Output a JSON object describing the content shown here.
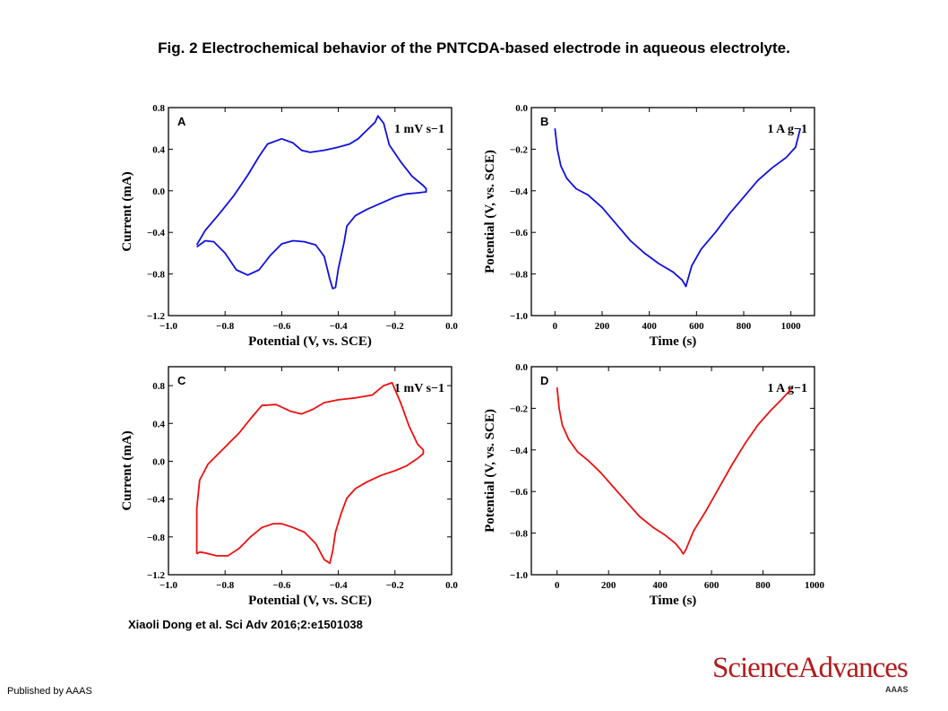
{
  "figure": {
    "title": "Fig. 2 Electrochemical behavior of the PNTCDA-based electrode in aqueous electrolyte.",
    "citation": "Xiaoli Dong et al. Sci Adv 2016;2:e1501038",
    "publisher": "Published by AAAS",
    "logo": "ScienceAdvances",
    "logo_sub": "AAAS"
  },
  "chart_data": [
    {
      "id": "A",
      "type": "line",
      "panel_label": "A",
      "annotation": "1 mV s−1",
      "xlabel": "Potential (V, vs. SCE)",
      "ylabel": "Current (mA)",
      "xlim": [
        -1.0,
        0.0
      ],
      "ylim": [
        -1.2,
        0.8
      ],
      "xticks": [
        "−1.0",
        "−0.8",
        "−0.6",
        "−0.4",
        "−0.2",
        "0.0"
      ],
      "yticks": [
        "−1.2",
        "−0.8",
        "−0.4",
        "0.0",
        "0.4",
        "0.8"
      ],
      "xtick_values": [
        -1.0,
        -0.8,
        -0.6,
        -0.4,
        -0.2,
        0.0
      ],
      "ytick_values": [
        -1.2,
        -0.8,
        -0.4,
        0.0,
        0.4,
        0.8
      ],
      "color": "#1010e0",
      "series": [
        {
          "x": [
            -0.9,
            -0.87,
            -0.82,
            -0.77,
            -0.72,
            -0.68,
            -0.65,
            -0.6,
            -0.56,
            -0.53,
            -0.5,
            -0.45,
            -0.4,
            -0.36,
            -0.33,
            -0.3,
            -0.27,
            -0.26,
            -0.24,
            -0.22,
            -0.18,
            -0.14,
            -0.1,
            -0.09,
            -0.09,
            -0.12,
            -0.16,
            -0.2,
            -0.25,
            -0.3,
            -0.34,
            -0.37,
            -0.38,
            -0.4,
            -0.41,
            -0.42,
            -0.43,
            -0.45,
            -0.48,
            -0.52,
            -0.56,
            -0.6,
            -0.64,
            -0.68,
            -0.72,
            -0.76,
            -0.8,
            -0.84,
            -0.87,
            -0.9
          ],
          "y": [
            -0.52,
            -0.38,
            -0.22,
            -0.05,
            0.15,
            0.33,
            0.45,
            0.5,
            0.46,
            0.39,
            0.37,
            0.39,
            0.42,
            0.45,
            0.5,
            0.58,
            0.66,
            0.72,
            0.65,
            0.44,
            0.28,
            0.14,
            0.05,
            0.02,
            -0.01,
            -0.02,
            -0.03,
            -0.06,
            -0.12,
            -0.18,
            -0.24,
            -0.34,
            -0.5,
            -0.75,
            -0.93,
            -0.94,
            -0.85,
            -0.63,
            -0.52,
            -0.49,
            -0.48,
            -0.51,
            -0.62,
            -0.76,
            -0.81,
            -0.76,
            -0.6,
            -0.49,
            -0.48,
            -0.54
          ]
        }
      ]
    },
    {
      "id": "B",
      "type": "line",
      "panel_label": "B",
      "annotation": "1 A g−1",
      "xlabel": "Time (s)",
      "ylabel": "Potential (V, vs. SCE)",
      "xlim": [
        -100,
        1100
      ],
      "ylim": [
        -1.0,
        0.0
      ],
      "xticks": [
        "0",
        "200",
        "400",
        "600",
        "800",
        "1000"
      ],
      "yticks": [
        "−1.0",
        "−0.8",
        "−0.6",
        "−0.4",
        "−0.2",
        "0.0"
      ],
      "xtick_values": [
        0,
        200,
        400,
        600,
        800,
        1000
      ],
      "ytick_values": [
        -1.0,
        -0.8,
        -0.6,
        -0.4,
        -0.2,
        0.0
      ],
      "color": "#1010e0",
      "series": [
        {
          "x": [
            0,
            10,
            25,
            50,
            90,
            140,
            200,
            260,
            320,
            380,
            440,
            500,
            540,
            555,
            565,
            580,
            620,
            680,
            740,
            800,
            860,
            920,
            980,
            1020,
            1040
          ],
          "y": [
            -0.1,
            -0.2,
            -0.28,
            -0.34,
            -0.39,
            -0.42,
            -0.48,
            -0.56,
            -0.64,
            -0.7,
            -0.75,
            -0.79,
            -0.83,
            -0.86,
            -0.82,
            -0.76,
            -0.68,
            -0.6,
            -0.51,
            -0.43,
            -0.35,
            -0.29,
            -0.24,
            -0.19,
            -0.1
          ]
        }
      ]
    },
    {
      "id": "C",
      "type": "line",
      "panel_label": "C",
      "annotation": "1 mV s−1",
      "xlabel": "Potential (V, vs. SCE)",
      "ylabel": "Current (mA)",
      "xlim": [
        -1.0,
        0.0
      ],
      "ylim": [
        -1.2,
        1.0
      ],
      "xticks": [
        "−1.0",
        "−0.8",
        "−0.6",
        "−0.4",
        "−0.2",
        "0.0"
      ],
      "yticks": [
        "−1.2",
        "−0.8",
        "−0.4",
        "0.0",
        "0.4",
        "0.8"
      ],
      "xtick_values": [
        -1.0,
        -0.8,
        -0.6,
        -0.4,
        -0.2,
        0.0
      ],
      "ytick_values": [
        -1.2,
        -0.8,
        -0.4,
        0.0,
        0.4,
        0.8
      ],
      "color": "#ee1010",
      "series": [
        {
          "x": [
            -0.9,
            -0.9,
            -0.89,
            -0.86,
            -0.8,
            -0.75,
            -0.71,
            -0.67,
            -0.62,
            -0.57,
            -0.53,
            -0.49,
            -0.45,
            -0.4,
            -0.34,
            -0.28,
            -0.24,
            -0.21,
            -0.18,
            -0.15,
            -0.12,
            -0.1,
            -0.1,
            -0.12,
            -0.16,
            -0.2,
            -0.25,
            -0.3,
            -0.34,
            -0.37,
            -0.39,
            -0.41,
            -0.42,
            -0.43,
            -0.45,
            -0.48,
            -0.52,
            -0.56,
            -0.6,
            -0.63,
            -0.67,
            -0.71,
            -0.75,
            -0.79,
            -0.83,
            -0.87,
            -0.89,
            -0.9
          ],
          "y": [
            -0.98,
            -0.5,
            -0.2,
            -0.03,
            0.15,
            0.3,
            0.45,
            0.59,
            0.6,
            0.53,
            0.5,
            0.55,
            0.62,
            0.65,
            0.67,
            0.7,
            0.8,
            0.83,
            0.62,
            0.37,
            0.18,
            0.12,
            0.08,
            0.03,
            -0.05,
            -0.1,
            -0.15,
            -0.22,
            -0.29,
            -0.39,
            -0.55,
            -0.75,
            -0.95,
            -1.08,
            -1.04,
            -0.87,
            -0.75,
            -0.7,
            -0.66,
            -0.66,
            -0.7,
            -0.8,
            -0.92,
            -1.0,
            -1.0,
            -0.97,
            -0.96,
            -0.98
          ]
        }
      ]
    },
    {
      "id": "D",
      "type": "line",
      "panel_label": "D",
      "annotation": "1 A g−1",
      "xlabel": "Time (s)",
      "ylabel": "Potential (V, vs. SCE)",
      "xlim": [
        -100,
        1000
      ],
      "ylim": [
        -1.0,
        0.0
      ],
      "xticks": [
        "0",
        "200",
        "400",
        "600",
        "800",
        "1000"
      ],
      "yticks": [
        "−1.0",
        "−0.8",
        "−0.6",
        "−0.4",
        "−0.2",
        "0.0"
      ],
      "xtick_values": [
        0,
        200,
        400,
        600,
        800,
        1000
      ],
      "ytick_values": [
        -1.0,
        -0.8,
        -0.6,
        -0.4,
        -0.2,
        0.0
      ],
      "color": "#ee1010",
      "series": [
        {
          "x": [
            0,
            8,
            20,
            45,
            80,
            120,
            170,
            220,
            270,
            320,
            370,
            420,
            460,
            480,
            490,
            500,
            530,
            580,
            630,
            680,
            730,
            780,
            830,
            870,
            900,
            910
          ],
          "y": [
            -0.1,
            -0.2,
            -0.28,
            -0.35,
            -0.41,
            -0.45,
            -0.51,
            -0.58,
            -0.65,
            -0.72,
            -0.77,
            -0.81,
            -0.85,
            -0.88,
            -0.9,
            -0.88,
            -0.79,
            -0.69,
            -0.58,
            -0.47,
            -0.37,
            -0.28,
            -0.21,
            -0.16,
            -0.12,
            -0.1
          ]
        }
      ]
    }
  ]
}
